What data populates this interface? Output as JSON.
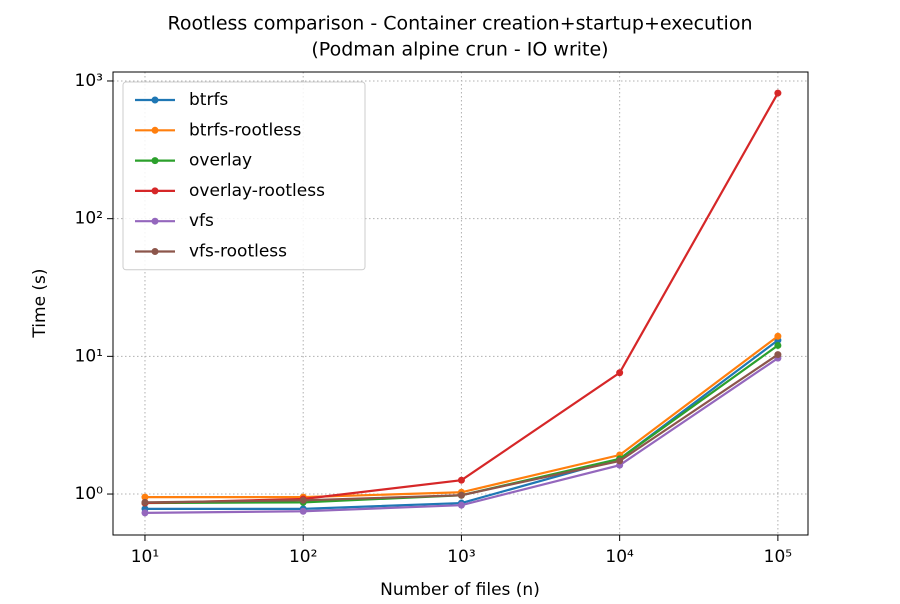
{
  "chart_data": {
    "type": "line",
    "title": "Rootless comparison - Container creation+startup+execution",
    "subtitle": "(Podman alpine crun - IO write)",
    "x_label": "Number of files (n)",
    "y_label": "Time (s)",
    "x": [
      10,
      100,
      1000,
      10000,
      100000
    ],
    "xscale": "log",
    "yscale": "log",
    "grid": true,
    "legend": "upper left",
    "xlim": [
      6.28,
      155000
    ],
    "ylim": [
      0.504,
      1162
    ],
    "xticks": [
      {
        "value": 10,
        "label": "10¹"
      },
      {
        "value": 100,
        "label": "10²"
      },
      {
        "value": 1000,
        "label": "10³"
      },
      {
        "value": 10000,
        "label": "10⁴"
      },
      {
        "value": 100000,
        "label": "10⁵"
      }
    ],
    "yticks": [
      {
        "value": 1,
        "label": "10⁰"
      },
      {
        "value": 10,
        "label": "10¹"
      },
      {
        "value": 100,
        "label": "10²"
      },
      {
        "value": 1000,
        "label": "10³"
      }
    ],
    "series": [
      {
        "name": "btrfs",
        "color": "#1f77b4",
        "values": [
          0.78,
          0.78,
          0.86,
          1.8,
          13.1
        ]
      },
      {
        "name": "btrfs-rootless",
        "color": "#ff7f0e",
        "values": [
          0.95,
          0.95,
          1.03,
          1.92,
          14.0
        ]
      },
      {
        "name": "overlay",
        "color": "#2ca02c",
        "values": [
          0.86,
          0.87,
          0.98,
          1.8,
          12
        ]
      },
      {
        "name": "overlay-rootless",
        "color": "#d62728",
        "values": [
          0.86,
          0.92,
          1.26,
          7.6,
          817
        ]
      },
      {
        "name": "vfs",
        "color": "#9467bd",
        "values": [
          0.73,
          0.75,
          0.83,
          1.62,
          9.7
        ]
      },
      {
        "name": "vfs-rootless",
        "color": "#8c564b",
        "values": [
          0.87,
          0.9,
          0.98,
          1.74,
          10.3
        ]
      }
    ]
  }
}
